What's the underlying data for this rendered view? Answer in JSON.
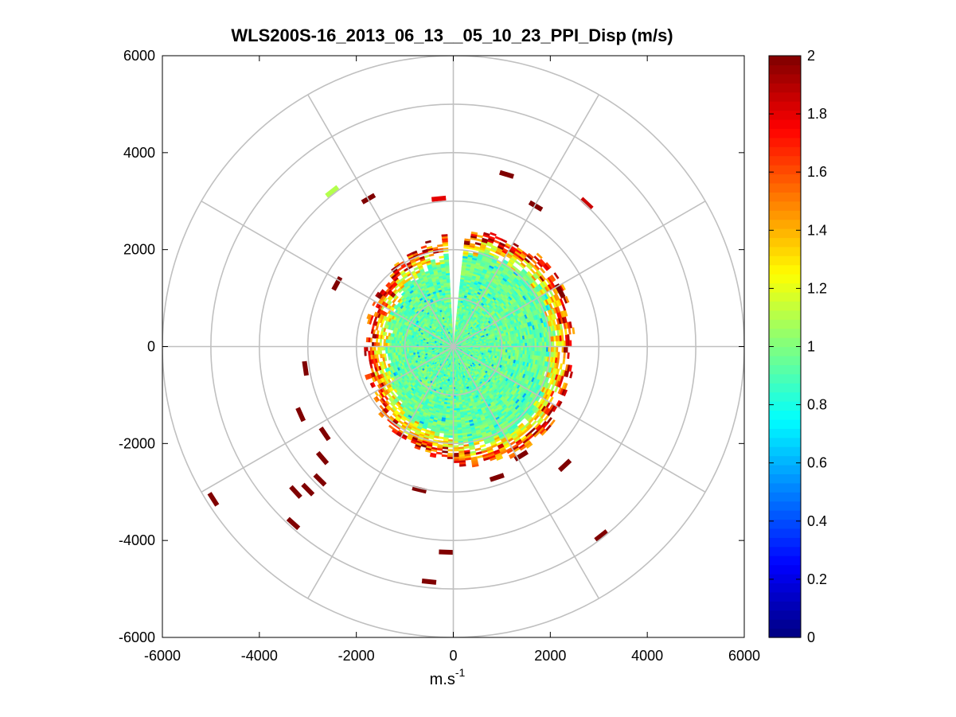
{
  "chart_data": {
    "type": "heatmap",
    "subtype": "polar-ppi",
    "title": "WLS200S-16_2013_06_13__05_10_23_PPI_Disp (m/s)",
    "xlabel": "m.s",
    "xlabel_superscript": "-1",
    "ylabel": "",
    "xlim": [
      -6000,
      6000
    ],
    "ylim": [
      -6000,
      6000
    ],
    "x_ticks": [
      -6000,
      -4000,
      -2000,
      0,
      2000,
      4000,
      6000
    ],
    "y_ticks": [
      -6000,
      -4000,
      -2000,
      0,
      2000,
      4000,
      6000
    ],
    "polar_grid": {
      "ring_radii": [
        1000,
        2000,
        3000,
        4000,
        5000,
        6000
      ],
      "spoke_angles_deg": [
        0,
        30,
        60,
        90,
        120,
        150,
        180,
        210,
        240,
        270,
        300,
        330
      ]
    },
    "colorbar": {
      "colormap": "jet",
      "min": 0,
      "max": 2,
      "ticks": [
        0,
        0.2,
        0.4,
        0.6,
        0.8,
        1,
        1.2,
        1.4,
        1.6,
        1.8,
        2
      ]
    },
    "field": {
      "core_radius_m": 2000,
      "core_value": 0.95,
      "edge_band_m": [
        1800,
        2600
      ],
      "edge_value_range": [
        1.1,
        2.0
      ],
      "missing_sector_deg": [
        85,
        91
      ],
      "noise_amplitude": 0.12
    },
    "outlier_cells": [
      {
        "x": 1100,
        "y": 3550,
        "v": 2.0
      },
      {
        "x": 2750,
        "y": 2950,
        "v": 1.85
      },
      {
        "x": -2500,
        "y": 3200,
        "v": 1.1
      },
      {
        "x": -1750,
        "y": 3050,
        "v": 2.0
      },
      {
        "x": -300,
        "y": 3050,
        "v": 1.8
      },
      {
        "x": 1700,
        "y": 2900,
        "v": 2.0
      },
      {
        "x": -2400,
        "y": 1300,
        "v": 2.0
      },
      {
        "x": 2200,
        "y": 1150,
        "v": 2.0
      },
      {
        "x": -3050,
        "y": -450,
        "v": 2.0
      },
      {
        "x": -3150,
        "y": -1400,
        "v": 2.0
      },
      {
        "x": -2650,
        "y": -1800,
        "v": 2.0
      },
      {
        "x": -2700,
        "y": -2300,
        "v": 2.0
      },
      {
        "x": -2750,
        "y": -2750,
        "v": 2.0
      },
      {
        "x": -3000,
        "y": -2950,
        "v": 2.0
      },
      {
        "x": -3250,
        "y": -3000,
        "v": 2.0
      },
      {
        "x": -4950,
        "y": -3150,
        "v": 2.0
      },
      {
        "x": -3300,
        "y": -3650,
        "v": 2.0
      },
      {
        "x": -150,
        "y": -4240,
        "v": 2.0
      },
      {
        "x": -500,
        "y": -4850,
        "v": 2.0
      },
      {
        "x": 3050,
        "y": -3900,
        "v": 2.0
      },
      {
        "x": 2300,
        "y": -2450,
        "v": 2.0
      },
      {
        "x": 900,
        "y": -2700,
        "v": 2.0
      },
      {
        "x": 1400,
        "y": -2250,
        "v": 2.0
      },
      {
        "x": -700,
        "y": -2950,
        "v": 2.0
      }
    ]
  }
}
